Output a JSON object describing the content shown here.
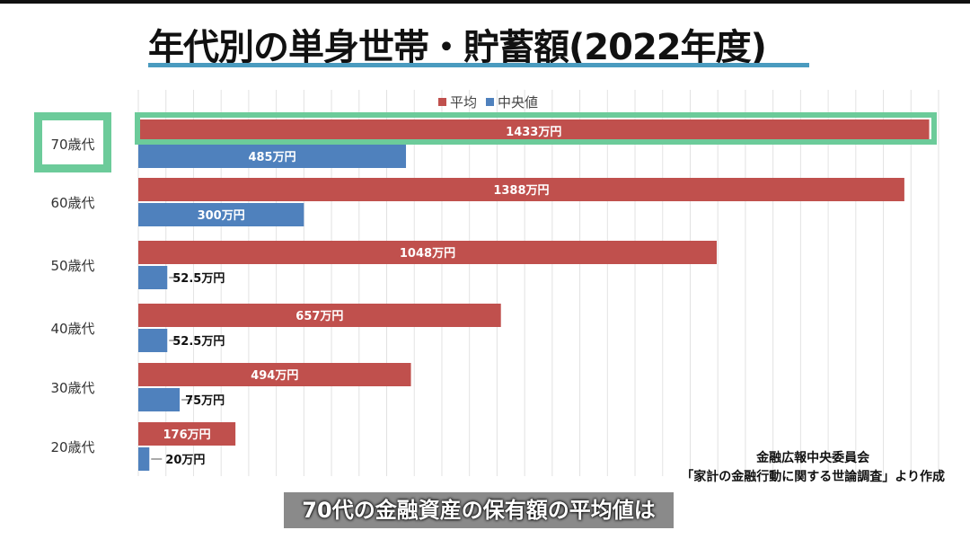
{
  "title": "年代別の単身世帯・貯蓄額(2022年度)",
  "chart_data": {
    "type": "bar",
    "orientation": "horizontal",
    "categories": [
      "70歳代",
      "60歳代",
      "50歳代",
      "40歳代",
      "30歳代",
      "20歳代"
    ],
    "series": [
      {
        "name": "平均",
        "color": "#c0504d",
        "values": [
          1433,
          1388,
          1048,
          657,
          494,
          176
        ],
        "labels": [
          "1433万円",
          "1388万円",
          "1048万円",
          "657万円",
          "494万円",
          "176万円"
        ]
      },
      {
        "name": "中央値",
        "color": "#4f81bd",
        "values": [
          485,
          300,
          52.5,
          52.5,
          75,
          20
        ],
        "labels": [
          "485万円",
          "300万円",
          "52.5万円",
          "52.5万円",
          "75万円",
          "20万円"
        ]
      }
    ],
    "unit": "万円",
    "xlim": [
      0,
      1450
    ],
    "grid": true,
    "legend_position": "top",
    "highlight": "70歳代",
    "highlight_color": "#6ccb9a"
  },
  "source": {
    "line1": "金融広報中央委員会",
    "line2": "「家計の金融行動に関する世論調査」より作成"
  },
  "caption": "70代の金融資産の保有額の平均値は"
}
